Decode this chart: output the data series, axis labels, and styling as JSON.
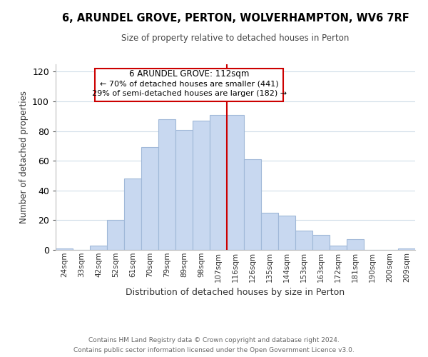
{
  "title": "6, ARUNDEL GROVE, PERTON, WOLVERHAMPTON, WV6 7RF",
  "subtitle": "Size of property relative to detached houses in Perton",
  "xlabel": "Distribution of detached houses by size in Perton",
  "ylabel": "Number of detached properties",
  "bar_labels": [
    "24sqm",
    "33sqm",
    "42sqm",
    "52sqm",
    "61sqm",
    "70sqm",
    "79sqm",
    "89sqm",
    "98sqm",
    "107sqm",
    "116sqm",
    "126sqm",
    "135sqm",
    "144sqm",
    "153sqm",
    "163sqm",
    "172sqm",
    "181sqm",
    "190sqm",
    "200sqm",
    "209sqm"
  ],
  "bar_values": [
    1,
    0,
    3,
    20,
    48,
    69,
    88,
    81,
    87,
    91,
    91,
    61,
    25,
    23,
    13,
    10,
    3,
    7,
    0,
    0,
    1
  ],
  "bar_color": "#c8d8f0",
  "bar_edge_color": "#a0b8d8",
  "marker_line_color": "#cc0000",
  "marker_label": "6 ARUNDEL GROVE: 112sqm",
  "annotation_line1": "← 70% of detached houses are smaller (441)",
  "annotation_line2": "29% of semi-detached houses are larger (182) →",
  "annotation_box_color": "#ffffff",
  "annotation_box_edge": "#cc0000",
  "ylim": [
    0,
    125
  ],
  "footer1": "Contains HM Land Registry data © Crown copyright and database right 2024.",
  "footer2": "Contains public sector information licensed under the Open Government Licence v3.0.",
  "bg_color": "#ffffff",
  "grid_color": "#d0dde8"
}
